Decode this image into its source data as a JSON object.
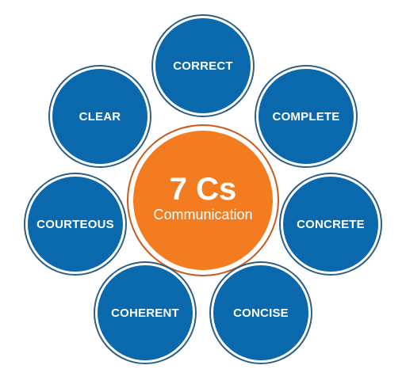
{
  "center": {
    "title": "7 Cs",
    "subtitle": "Communication"
  },
  "items": [
    {
      "key": "correct",
      "label": "CORRECT"
    },
    {
      "key": "complete",
      "label": "COMPLETE"
    },
    {
      "key": "concrete",
      "label": "CONCRETE"
    },
    {
      "key": "concise",
      "label": "CONCISE"
    },
    {
      "key": "coherent",
      "label": "COHERENT"
    },
    {
      "key": "courteous",
      "label": "COURTEOUS"
    },
    {
      "key": "clear",
      "label": "CLEAR"
    }
  ],
  "colors": {
    "blue": "#0a68ad",
    "blue_ring": "#2d5e88",
    "orange": "#f47c20",
    "orange_ring": "#c85a1e"
  }
}
